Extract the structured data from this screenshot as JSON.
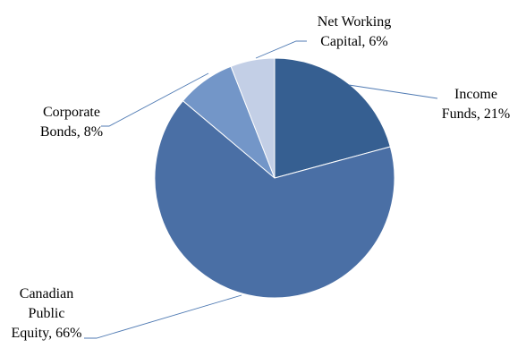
{
  "chart_data": {
    "type": "pie",
    "title": "",
    "start_angle_deg": 0,
    "direction": "clockwise",
    "legend": "none",
    "slices": [
      {
        "name": "Income Funds",
        "value": 21,
        "label_lines": [
          "Income",
          "Funds, 21%"
        ],
        "color": "#365f91"
      },
      {
        "name": "Canadian Public Equity",
        "value": 66,
        "label_lines": [
          "Canadian",
          "Public",
          "Equity, 66%"
        ],
        "color": "#4a6fa5"
      },
      {
        "name": "Corporate Bonds",
        "value": 8,
        "label_lines": [
          "Corporate",
          "Bonds, 8%"
        ],
        "color": "#7396c8"
      },
      {
        "name": "Net Working Capital",
        "value": 6,
        "label_lines": [
          "Net Working",
          "Capital, 6%"
        ],
        "color": "#c3cfe6"
      }
    ]
  }
}
